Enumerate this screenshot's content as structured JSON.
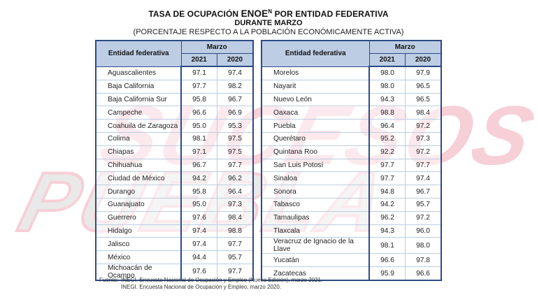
{
  "title": {
    "line1_prefix": "TASA DE OCUPACIÓN ",
    "line1_acronym": "ENOE",
    "line1_sup": "N",
    "line1_suffix": " POR ENTIDAD FEDERATIVA",
    "line2": "DURANTE MARZO",
    "line3": "(PORCENTAJE RESPECTO A LA POBLACIÓN ECONÓMICAMENTE ACTIVA)"
  },
  "table_headers": {
    "entity": "Entidad federativa",
    "period": "Marzo",
    "year1": "2021",
    "year2": "2020"
  },
  "left_rows": [
    {
      "entity": "Aguascalientes",
      "v2021": "97.1",
      "v2020": "97.4"
    },
    {
      "entity": "Baja California",
      "v2021": "97.7",
      "v2020": "98.2"
    },
    {
      "entity": "Baja California Sur",
      "v2021": "95.8",
      "v2020": "96.7"
    },
    {
      "entity": "Campeche",
      "v2021": "96.6",
      "v2020": "96.9"
    },
    {
      "entity": "Coahuila de Zaragoza",
      "v2021": "95.0",
      "v2020": "95.3"
    },
    {
      "entity": "Colima",
      "v2021": "98.1",
      "v2020": "97.5"
    },
    {
      "entity": "Chiapas",
      "v2021": "97.1",
      "v2020": "97.5"
    },
    {
      "entity": "Chihuahua",
      "v2021": "96.7",
      "v2020": "97.7"
    },
    {
      "entity": "Ciudad de México",
      "v2021": "94.2",
      "v2020": "96.2"
    },
    {
      "entity": "Durango",
      "v2021": "95.8",
      "v2020": "96.4"
    },
    {
      "entity": "Guanajuato",
      "v2021": "95.0",
      "v2020": "97.3"
    },
    {
      "entity": "Guerrero",
      "v2021": "97.6",
      "v2020": "98.4"
    },
    {
      "entity": "Hidalgo",
      "v2021": "97.4",
      "v2020": "98.8"
    },
    {
      "entity": "Jalisco",
      "v2021": "97.4",
      "v2020": "97.7"
    },
    {
      "entity": "México",
      "v2021": "94.4",
      "v2020": "95.7"
    },
    {
      "entity": "Michoacán de Ocampo",
      "v2021": "97.6",
      "v2020": "97.7"
    }
  ],
  "right_rows": [
    {
      "entity": "Morelos",
      "v2021": "98.0",
      "v2020": "97.9"
    },
    {
      "entity": "Nayarit",
      "v2021": "98.0",
      "v2020": "96.5"
    },
    {
      "entity": "Nuevo León",
      "v2021": "94.3",
      "v2020": "96.5"
    },
    {
      "entity": "Oaxaca",
      "v2021": "98.8",
      "v2020": "98.4"
    },
    {
      "entity": "Puebla",
      "v2021": "96.4",
      "v2020": "97.2"
    },
    {
      "entity": "Querétaro",
      "v2021": "95.2",
      "v2020": "97.3"
    },
    {
      "entity": "Quintana Roo",
      "v2021": "92.2",
      "v2020": "97.2"
    },
    {
      "entity": "San Luis Potosí",
      "v2021": "97.7",
      "v2020": "97.7"
    },
    {
      "entity": "Sinaloa",
      "v2021": "97.7",
      "v2020": "97.4"
    },
    {
      "entity": "Sonora",
      "v2021": "94.8",
      "v2020": "96.7"
    },
    {
      "entity": "Tabasco",
      "v2021": "94.2",
      "v2020": "95.7"
    },
    {
      "entity": "Tamaulipas",
      "v2021": "96.2",
      "v2020": "97.2"
    },
    {
      "entity": "Tlaxcala",
      "v2021": "94.3",
      "v2020": "96.0"
    },
    {
      "entity": "Veracruz de Ignacio de la Llave",
      "v2021": "98.1",
      "v2020": "98.0"
    },
    {
      "entity": "Yucatán",
      "v2021": "96.6",
      "v2020": "97.8"
    },
    {
      "entity": "Zacatecas",
      "v2021": "95.9",
      "v2020": "96.6"
    }
  ],
  "footer": {
    "label": "Fuente:",
    "source1": "INEGI. Encuesta Nacional de Ocupación y Empleo (Nueva Edición), marzo 2021.",
    "source2": "INEGI. Encuesta Nacional de Ocupación y Empleo, marzo 2020."
  },
  "watermark": {
    "text": "SUCESOS PUEBLA",
    "color": "#f4c6cf"
  }
}
